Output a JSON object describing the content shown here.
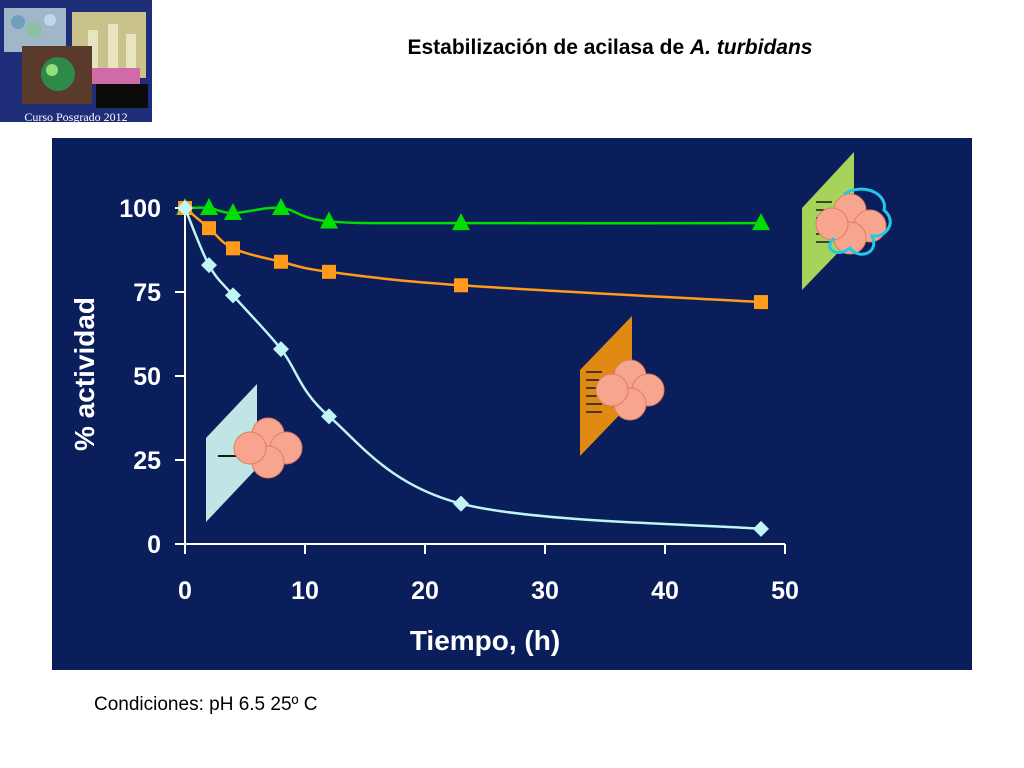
{
  "header": {
    "title_prefix": "Estabilización de acilasa de ",
    "title_species": "A. turbidans",
    "logo_caption": "Curso Posgrado 2012"
  },
  "footer": {
    "conditions": "Condiciones: pH 6.5 25º C"
  },
  "colors": {
    "panel_bg": "#0a1e5c",
    "axis": "#ffffff",
    "series_triangle": "#00dd00",
    "series_square": "#ff9a1a",
    "series_diamond": "#bff5f5",
    "panel_green": "#a6d45a",
    "panel_orange": "#e08a14",
    "panel_cyan": "#bfe5e5",
    "enzyme_sphere": "#f7a58e"
  },
  "chart_data": {
    "type": "line",
    "title": "",
    "xlabel": "Tiempo, (h)",
    "ylabel": "% actividad",
    "xlim": [
      0,
      50
    ],
    "ylim": [
      0,
      100
    ],
    "xticks": [
      "0",
      "10",
      "20",
      "30",
      "40",
      "50"
    ],
    "yticks": [
      "0",
      "25",
      "50",
      "75",
      "100"
    ],
    "grid": false,
    "legend": "none",
    "series": [
      {
        "marker": "triangle",
        "color": "#00dd00",
        "x": [
          0,
          2,
          4,
          8,
          12,
          23,
          48
        ],
        "y": [
          100,
          100,
          98.5,
          100,
          96,
          95.5,
          95.5
        ]
      },
      {
        "marker": "square",
        "color": "#ff9a1a",
        "x": [
          0,
          2,
          4,
          8,
          12,
          23,
          48
        ],
        "y": [
          100,
          94,
          88,
          84,
          81,
          77,
          72
        ]
      },
      {
        "marker": "diamond",
        "color": "#bff5f5",
        "x": [
          0,
          2,
          4,
          8,
          12,
          23,
          48
        ],
        "y": [
          100,
          83,
          74,
          58,
          38,
          12,
          4.5
        ]
      }
    ]
  }
}
